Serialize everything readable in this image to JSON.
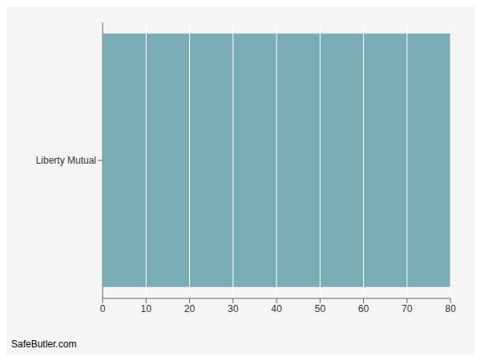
{
  "chart_data": {
    "type": "bar",
    "orientation": "horizontal",
    "categories": [
      "Liberty Mutual"
    ],
    "values": [
      80
    ],
    "color": "#7AADB8",
    "xlim": [
      0,
      80
    ],
    "xticks": [
      0,
      10,
      20,
      30,
      40,
      50,
      60,
      70,
      80
    ],
    "grid": true,
    "annotations": [
      "SafeButler.com"
    ]
  }
}
